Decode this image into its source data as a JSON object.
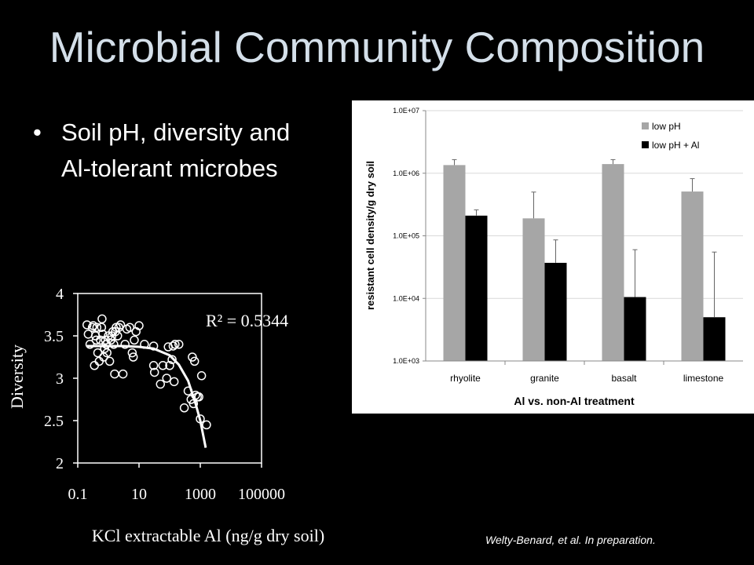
{
  "title": "Microbial Community Composition",
  "bullet": "Soil pH, diversity and Al-tolerant microbes",
  "citation": "Welty-Benard, et al. In preparation.",
  "chart_data": [
    {
      "type": "scatter",
      "xlabel": "KCl extractable Al (ng/g dry soil)",
      "ylabel": "Diversity",
      "xscale": "log",
      "xlim": [
        0.1,
        100000
      ],
      "ylim": [
        2,
        4
      ],
      "xticks": [
        "0.1",
        "10",
        "1000",
        "100000"
      ],
      "yticks": [
        "4",
        "3.5",
        "3",
        "2.5",
        "2"
      ],
      "annotation": "R² = 0.5344",
      "points": [
        [
          0.2,
          3.63
        ],
        [
          0.22,
          3.52
        ],
        [
          0.25,
          3.4
        ],
        [
          0.3,
          3.6
        ],
        [
          0.32,
          3.62
        ],
        [
          0.35,
          3.15
        ],
        [
          0.38,
          3.5
        ],
        [
          0.4,
          3.45
        ],
        [
          0.42,
          3.6
        ],
        [
          0.45,
          3.3
        ],
        [
          0.5,
          3.2
        ],
        [
          0.55,
          3.45
        ],
        [
          0.6,
          3.6
        ],
        [
          0.62,
          3.7
        ],
        [
          0.65,
          3.52
        ],
        [
          0.7,
          3.25
        ],
        [
          0.75,
          3.35
        ],
        [
          0.8,
          3.45
        ],
        [
          0.85,
          3.4
        ],
        [
          0.9,
          3.3
        ],
        [
          1.0,
          3.5
        ],
        [
          1.1,
          3.2
        ],
        [
          1.2,
          3.45
        ],
        [
          1.3,
          3.5
        ],
        [
          1.4,
          3.55
        ],
        [
          1.5,
          3.4
        ],
        [
          1.6,
          3.05
        ],
        [
          1.7,
          3.55
        ],
        [
          1.8,
          3.6
        ],
        [
          2.0,
          3.5
        ],
        [
          2.2,
          3.6
        ],
        [
          2.5,
          3.63
        ],
        [
          3.0,
          3.05
        ],
        [
          3.5,
          3.4
        ],
        [
          4.0,
          3.58
        ],
        [
          5.0,
          3.6
        ],
        [
          6.0,
          3.3
        ],
        [
          6.5,
          3.25
        ],
        [
          7.0,
          3.45
        ],
        [
          8.0,
          3.55
        ],
        [
          10,
          3.62
        ],
        [
          15,
          3.4
        ],
        [
          30,
          3.38
        ],
        [
          30,
          3.15
        ],
        [
          32,
          3.07
        ],
        [
          50,
          2.93
        ],
        [
          60,
          3.15
        ],
        [
          80,
          3.0
        ],
        [
          90,
          3.37
        ],
        [
          100,
          3.15
        ],
        [
          120,
          3.22
        ],
        [
          130,
          3.38
        ],
        [
          140,
          2.96
        ],
        [
          150,
          3.4
        ],
        [
          200,
          3.4
        ],
        [
          300,
          2.65
        ],
        [
          400,
          2.85
        ],
        [
          500,
          2.75
        ],
        [
          550,
          3.25
        ],
        [
          600,
          2.7
        ],
        [
          650,
          3.2
        ],
        [
          700,
          2.8
        ],
        [
          800,
          2.78
        ],
        [
          900,
          2.78
        ],
        [
          1000,
          2.52
        ],
        [
          1100,
          3.03
        ],
        [
          1600,
          2.45
        ]
      ],
      "trendline": [
        [
          0.2,
          3.38
        ],
        [
          3,
          3.38
        ],
        [
          10,
          3.37
        ],
        [
          30,
          3.35
        ],
        [
          100,
          3.27
        ],
        [
          200,
          3.16
        ],
        [
          400,
          2.97
        ],
        [
          700,
          2.7
        ],
        [
          1000,
          2.5
        ],
        [
          1500,
          2.18
        ]
      ]
    },
    {
      "type": "bar",
      "xlabel": "Al vs. non-Al treatment",
      "ylabel": "resistant cell density/g dry soil",
      "yscale": "log",
      "ylim": [
        1000,
        10000000
      ],
      "yticks": [
        "1.0E+07",
        "1.0E+06",
        "1.0E+05",
        "1.0E+04",
        "1.0E+03"
      ],
      "categories": [
        "rhyolite",
        "granite",
        "basalt",
        "limestone"
      ],
      "legend_position": "top-right",
      "series": [
        {
          "name": "low pH",
          "color": "#a6a6a6",
          "values": [
            1350000,
            190000,
            1400000,
            510000
          ],
          "error_upper": [
            1650000,
            500000,
            1650000,
            820000
          ]
        },
        {
          "name": "low pH + Al",
          "color": "#000000",
          "values": [
            210000,
            37000,
            10500,
            5000
          ],
          "error_upper": [
            260000,
            86000,
            60000,
            55000
          ]
        }
      ]
    }
  ]
}
